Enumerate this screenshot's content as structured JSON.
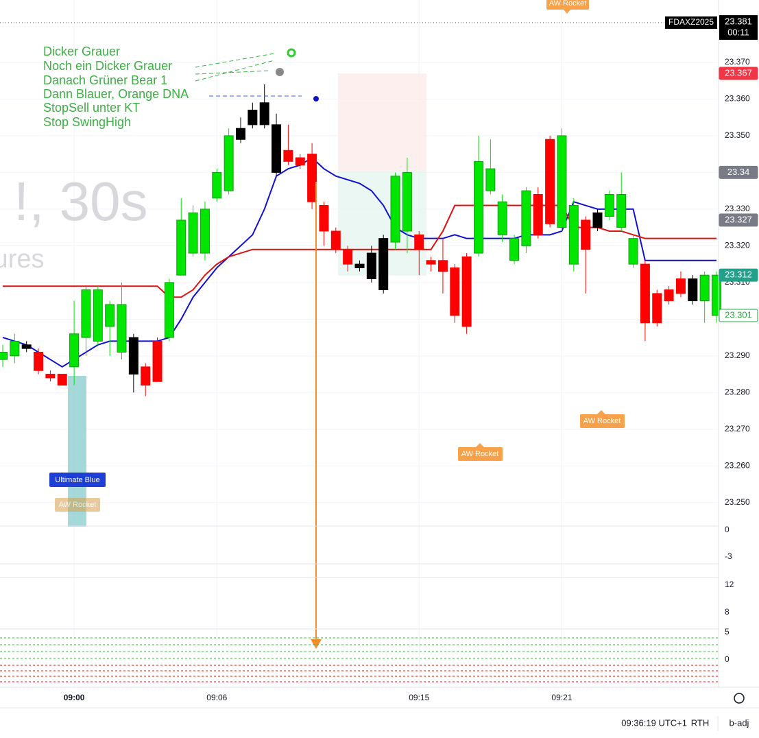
{
  "chart_data": {
    "type": "candlestick",
    "symbol": "FDAXZ2025",
    "countdown": "00:11",
    "watermark": [
      "!, 30s",
      "tures"
    ],
    "categories": [
      null,
      null,
      null,
      null,
      null,
      null,
      "09:00",
      null,
      null,
      null,
      null,
      null,
      null,
      null,
      null,
      null,
      null,
      null,
      "09:06",
      null,
      null,
      null,
      null,
      null,
      null,
      null,
      null,
      null,
      null,
      null,
      null,
      null,
      null,
      null,
      null,
      "09:15",
      null,
      null,
      null,
      null,
      null,
      null,
      null,
      null,
      null,
      null,
      null,
      "09:21",
      null,
      null,
      null,
      null,
      null,
      null,
      null,
      null,
      null,
      null,
      null,
      null,
      null
    ],
    "open": [
      23.289,
      23.29,
      23.293,
      23.291,
      23.285,
      23.285,
      23.287,
      23.295,
      23.294,
      23.298,
      23.291,
      23.295,
      23.287,
      23.294,
      23.295,
      23.312,
      23.318,
      23.318,
      23.333,
      23.335,
      23.349,
      23.353,
      23.353,
      23.353,
      23.346,
      23.344,
      23.345,
      23.331,
      23.324,
      23.319,
      23.315,
      23.318,
      23.308,
      23.321,
      23.324,
      23.323,
      23.316,
      23.316,
      23.314,
      23.317,
      23.318,
      23.335,
      23.323,
      23.316,
      23.32,
      23.334,
      23.349,
      23.325,
      23.315,
      23.327,
      23.325,
      23.328,
      23.325,
      23.315,
      23.315,
      23.307,
      23.308,
      23.311,
      23.305,
      23.305,
      23.301
    ],
    "high": [
      23.293,
      23.296,
      23.294,
      23.292,
      23.286,
      23.285,
      23.305,
      23.309,
      23.309,
      23.305,
      23.31,
      23.296,
      23.288,
      23.295,
      23.311,
      23.333,
      23.331,
      23.332,
      23.341,
      23.352,
      23.355,
      23.359,
      23.364,
      23.356,
      23.353,
      23.345,
      23.348,
      23.332,
      23.325,
      23.32,
      23.316,
      23.32,
      23.323,
      23.34,
      23.344,
      23.324,
      23.317,
      23.322,
      23.315,
      23.318,
      23.35,
      23.349,
      23.334,
      23.323,
      23.336,
      23.336,
      23.35,
      23.352,
      23.333,
      23.328,
      23.33,
      23.335,
      23.34,
      23.323,
      23.316,
      23.308,
      23.309,
      23.313,
      23.312,
      23.313,
      23.313
    ],
    "low": [
      23.287,
      23.288,
      23.291,
      23.285,
      23.283,
      23.282,
      23.282,
      23.29,
      23.293,
      23.29,
      23.289,
      23.28,
      23.279,
      23.283,
      23.294,
      23.312,
      23.317,
      23.316,
      23.332,
      23.334,
      23.348,
      23.352,
      23.352,
      23.339,
      23.342,
      23.341,
      23.33,
      23.32,
      23.318,
      23.313,
      23.313,
      23.31,
      23.307,
      23.319,
      23.318,
      23.312,
      23.313,
      23.307,
      23.299,
      23.296,
      23.317,
      23.334,
      23.321,
      23.315,
      23.318,
      23.322,
      23.325,
      23.324,
      23.313,
      23.307,
      23.324,
      23.327,
      23.324,
      23.314,
      23.294,
      23.298,
      23.304,
      23.306,
      23.304,
      23.299,
      23.299
    ],
    "close": [
      23.291,
      23.294,
      23.292,
      23.286,
      23.284,
      23.282,
      23.296,
      23.308,
      23.308,
      23.304,
      23.304,
      23.285,
      23.282,
      23.283,
      23.31,
      23.327,
      23.329,
      23.33,
      23.34,
      23.35,
      23.352,
      23.357,
      23.359,
      23.34,
      23.343,
      23.342,
      23.332,
      23.324,
      23.319,
      23.315,
      23.314,
      23.311,
      23.322,
      23.339,
      23.34,
      23.319,
      23.315,
      23.313,
      23.301,
      23.298,
      23.343,
      23.341,
      23.332,
      23.322,
      23.335,
      23.323,
      23.326,
      23.35,
      23.331,
      23.319,
      23.329,
      23.334,
      23.334,
      23.322,
      23.299,
      23.299,
      23.305,
      23.307,
      23.311,
      23.312,
      23.312
    ],
    "candle_colors": [
      "#00e600",
      "#00e600",
      "#000000",
      "#ff0000",
      "#ff0000",
      "#ff0000",
      "#00e600",
      "#00e600",
      "#00e600",
      "#00e600",
      "#00e600",
      "#000000",
      "#ff0000",
      "#ff0000",
      "#00e600",
      "#00e600",
      "#00e600",
      "#00e600",
      "#00e600",
      "#00e600",
      "#000000",
      "#000000",
      "#000000",
      "#000000",
      "#ff0000",
      "#ff0000",
      "#ff0000",
      "#ff0000",
      "#ff0000",
      "#ff0000",
      "#000000",
      "#000000",
      "#000000",
      "#00e600",
      "#00e600",
      "#ff0000",
      "#ff0000",
      "#ff0000",
      "#ff0000",
      "#ff0000",
      "#00e600",
      "#00e600",
      "#00e600",
      "#00e600",
      "#00e600",
      "#ff0000",
      "#ff0000",
      "#00e600",
      "#00e600",
      "#ff0000",
      "#000000",
      "#00e600",
      "#00e600",
      "#00e600",
      "#ff0000",
      "#ff0000",
      "#ff0000",
      "#ff0000",
      "#000000",
      "#00e600",
      "#00e600"
    ],
    "lines": [
      {
        "color": "#1010d0",
        "values": [
          23.295,
          23.294,
          23.293,
          23.291,
          23.289,
          23.287,
          23.289,
          23.291,
          23.293,
          23.294,
          23.294,
          23.294,
          23.294,
          23.294,
          23.295,
          23.3,
          23.306,
          23.31,
          23.314,
          23.317,
          23.32,
          23.323,
          23.33,
          23.339,
          23.341,
          23.342,
          23.344,
          23.341,
          23.339,
          23.338,
          23.337,
          23.335,
          23.331,
          23.325,
          23.323,
          23.322,
          23.322,
          23.322,
          23.323,
          23.322,
          23.322,
          23.322,
          23.322,
          23.322,
          23.323,
          23.323,
          23.323,
          23.324,
          23.332,
          23.331,
          23.33,
          23.33,
          23.33,
          23.33,
          23.316,
          23.316,
          23.316,
          23.316,
          23.316,
          23.316,
          23.316
        ]
      },
      {
        "color": "#e01010",
        "values": [
          23.309,
          23.309,
          23.309,
          23.309,
          23.309,
          23.309,
          23.309,
          23.309,
          23.309,
          23.309,
          23.309,
          23.309,
          23.309,
          23.309,
          23.306,
          23.306,
          23.308,
          23.312,
          23.315,
          23.317,
          23.318,
          23.319,
          23.319,
          23.319,
          23.319,
          23.319,
          23.319,
          23.319,
          23.319,
          23.319,
          23.319,
          23.319,
          23.319,
          23.319,
          23.319,
          23.319,
          23.319,
          23.324,
          23.331,
          23.331,
          23.331,
          23.331,
          23.331,
          23.331,
          23.331,
          23.331,
          23.331,
          23.331,
          23.325,
          23.325,
          23.325,
          23.324,
          23.324,
          23.323,
          23.322,
          23.322,
          23.322,
          23.322,
          23.322,
          23.322,
          23.322
        ]
      }
    ],
    "ylim": [
      23.2436,
      23.387
    ],
    "yticks": [
      {
        "value": 23.25,
        "label": "23.250"
      },
      {
        "value": 23.26,
        "label": "23.260"
      },
      {
        "value": 23.27,
        "label": "23.270"
      },
      {
        "value": 23.28,
        "label": "23.280"
      },
      {
        "value": 23.29,
        "label": "23.290"
      },
      {
        "value": 23.3,
        "label": "23.300"
      },
      {
        "value": 23.31,
        "label": "23.310"
      },
      {
        "value": 23.32,
        "label": "23.320"
      },
      {
        "value": 23.33,
        "label": "23.330"
      },
      {
        "value": 23.34,
        "label": "23.340"
      },
      {
        "value": 23.35,
        "label": "23.350"
      },
      {
        "value": 23.36,
        "label": "23.360"
      },
      {
        "value": 23.37,
        "label": "23.370"
      }
    ],
    "grid": true,
    "price_labels": [
      {
        "value": 23.367,
        "color": "#f23645",
        "text_color": "#ffffff",
        "border": "#f23645"
      },
      {
        "value": 23.34,
        "color": "#787b86",
        "text_color": "#ffffff",
        "border": "#787b86"
      },
      {
        "value": 23.327,
        "color": "#787b86",
        "text_color": "#ffffff",
        "border": "#787b86"
      },
      {
        "value": 23.312,
        "color": "#22a08a",
        "text_color": "#ffffff",
        "border": "#22a08a"
      },
      {
        "value": 23.301,
        "color": "#ffffff",
        "text_color": "#22ab3a",
        "border": "#22ab3a"
      }
    ],
    "last_price": 23.381,
    "annotations": [
      "Dicker Grauer",
      "Noch ein Dicker Grauer",
      "Danach Grüner Bear 1",
      "Dann Blauer, Orange DNA",
      "StopSell unter KT",
      "Stop SwingHigh"
    ],
    "markers": [
      "AW Rocket",
      "AW Rocket",
      "AW Rocket",
      "AW Rocket",
      "Ultimate Blue"
    ],
    "indicator_panes": [
      {
        "yticks": [
          0,
          -3
        ]
      },
      {
        "yticks": [
          12,
          8
        ]
      },
      {
        "yticks": [
          5,
          0
        ]
      }
    ]
  },
  "status_bar": {
    "clock": "09:36:19 UTC+1",
    "session": "RTH",
    "adjustment": "b-adj"
  }
}
